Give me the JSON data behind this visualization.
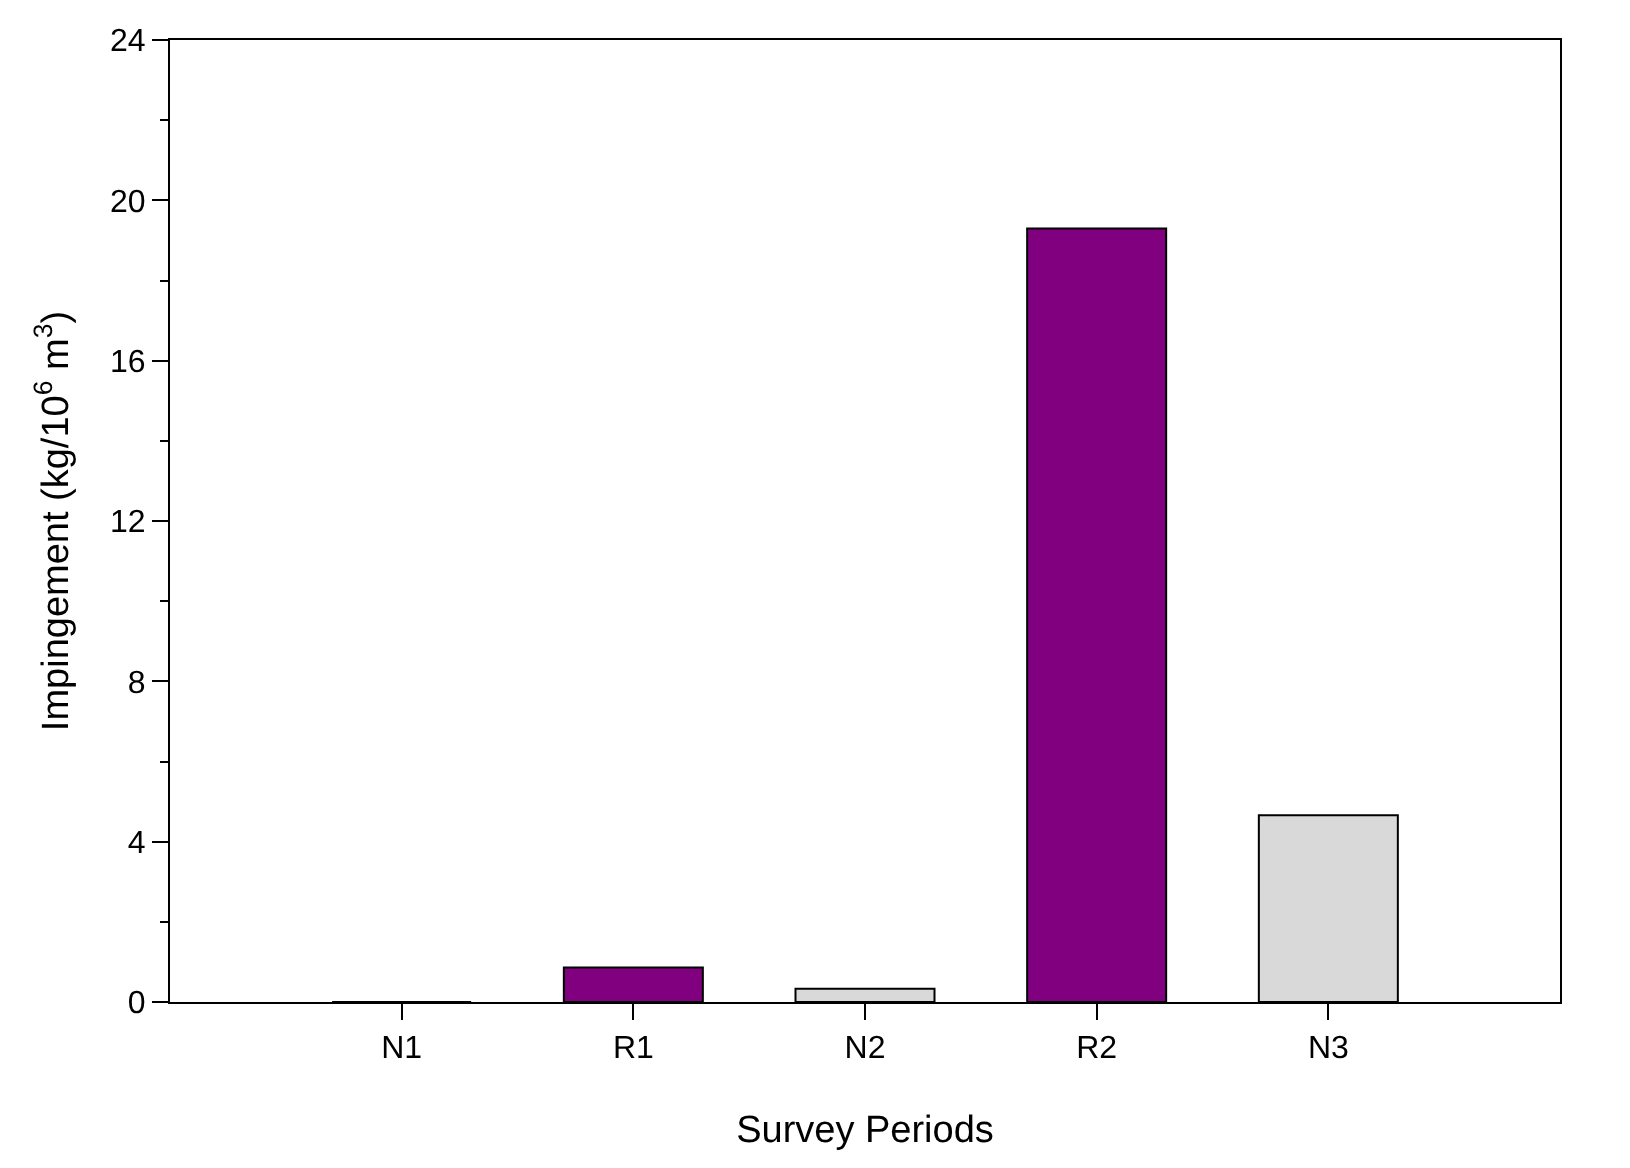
{
  "chart_data": {
    "type": "bar",
    "xlabel": "Survey Periods",
    "ylabel": "Impingement (kg/10$^{6}$ m$^{3}$)",
    "categories": [
      "N1",
      "R1",
      "N2",
      "R2",
      "N3"
    ],
    "values": [
      0,
      0.86,
      0.33,
      19.3,
      4.66
    ],
    "colors": [
      "#d9d9d9",
      "#800080",
      "#d9d9d9",
      "#800080",
      "#d9d9d9"
    ],
    "ylim": [
      0,
      24
    ],
    "yticks": [
      0,
      4,
      8,
      12,
      16,
      20,
      24
    ]
  }
}
